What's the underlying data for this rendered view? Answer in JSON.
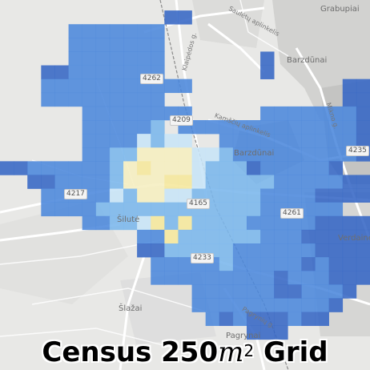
{
  "map": {
    "places": {
      "grabupiai": "Grabupiai",
      "barzdunai_ne": "Barzdūnai",
      "barzdunai_center": "Barzdūnai",
      "silute": "Šilutė",
      "verdaine": "Verdainė",
      "slazai": "Šlažai",
      "pagrynai": "Pagrynai"
    },
    "road_numbers": {
      "r4262": "4262",
      "r4209": "4209",
      "r4235": "4235",
      "r4217": "4217",
      "r4261": "4261",
      "r4233": "4233",
      "r4165": "4165"
    },
    "road_labels": {
      "saulenu": "Saulėtų aplinkelis",
      "klaipedos": "Klaipėdos g.",
      "kamstu": "Kamščių aplinkelis",
      "mikno": "Mikno g.",
      "pagryniu": "Pagrynių g."
    },
    "colors": {
      "dark": "#3566c5",
      "mid": "#4b87dc",
      "light": "#7ab6ec",
      "pale": "#c7e4f7",
      "cream": "#f5eec0",
      "yellow": "#f5e79c"
    },
    "grid_rows": [
      "...........................",
      "............XX.............",
      ".....HHHHHHH...............",
      ".....HHHHHHH...............",
      ".....HHHHHHH.......X.......",
      "...XXHHHHHHH.......X.......",
      "...HHHHHHHHHHH...........XX",
      "...HHHHHHHHH.............XX",
      "......HHHHHHHH.....HHHHHHHX",
      "......HHHHHL.HHHHHHHHHHHHHX",
      "......HHHHPLPP..HHHHHHHHHHX",
      "......HHLLCCCCPPLHHHHHHHHHX",
      "XXHHHHHHLCYCCCPLLLXHHHHHX..",
      "..XXHHHHLCCCYYPLLLLLHHHHHXX",
      "...HHHHHPLCCPPLLLLLHHHHXXXX",
      "...HHHHLLLLLLLLLLLLHHHHHH..",
      "......HHLLPYLYLLLLHHHHHXXXX",
      "..........HHYLLLLLLHHHXXXXX",
      "..........XXLLLLLHHHHHHXXXX",
      "...........HHHHHLHHHHHXHXXX",
      "...........HHHHHHHHHXHHHXXX",
      "..............HHHHHHXXHHHX.",
      "..............HHHHHHHHHHX..",
      "...............HXHXXXHXX...",
      "..................XXX......",
      "..........................."
    ]
  },
  "title": {
    "prefix": "Census 250",
    "unit": "m",
    "exponent": "2",
    "suffix": "Grid"
  }
}
